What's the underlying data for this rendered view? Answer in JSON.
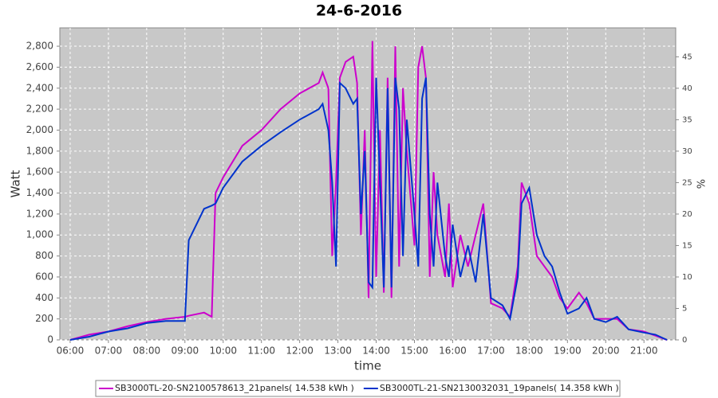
{
  "chart_data": {
    "type": "line",
    "title": "24-6-2016",
    "x_label": "time",
    "y_label": "Watt",
    "y2_label": "%",
    "x": [
      6.0,
      6.5,
      7.0,
      7.5,
      8.0,
      8.5,
      9.0,
      9.1,
      9.5,
      9.7,
      9.8,
      10.0,
      10.5,
      11.0,
      11.5,
      12.0,
      12.5,
      12.6,
      12.75,
      12.85,
      12.95,
      13.05,
      13.2,
      13.4,
      13.5,
      13.6,
      13.7,
      13.8,
      13.9,
      14.0,
      14.1,
      14.2,
      14.3,
      14.4,
      14.5,
      14.6,
      14.7,
      14.8,
      15.0,
      15.1,
      15.2,
      15.3,
      15.4,
      15.5,
      15.6,
      15.8,
      15.9,
      16.0,
      16.2,
      16.4,
      16.6,
      16.8,
      17.0,
      17.3,
      17.5,
      17.7,
      17.8,
      18.0,
      18.2,
      18.4,
      18.6,
      18.8,
      19.0,
      19.3,
      19.5,
      19.7,
      20.0,
      20.3,
      20.6,
      21.0,
      21.3,
      21.6
    ],
    "series": [
      {
        "name": "SB3000TL-20-SN2100578613_21panels( 14.538 kWh )",
        "color": "#cc00cc",
        "values": [
          0,
          50,
          80,
          130,
          170,
          200,
          220,
          230,
          260,
          220,
          1400,
          1550,
          1850,
          2000,
          2200,
          2350,
          2450,
          2550,
          2400,
          800,
          1500,
          2500,
          2650,
          2700,
          2450,
          1000,
          2000,
          400,
          2850,
          600,
          2000,
          450,
          2500,
          400,
          2800,
          700,
          2400,
          1800,
          900,
          2600,
          2800,
          2500,
          600,
          1600,
          1000,
          600,
          1300,
          500,
          1000,
          700,
          1000,
          1300,
          350,
          300,
          220,
          700,
          1500,
          1300,
          800,
          700,
          600,
          400,
          300,
          450,
          350,
          200,
          200,
          200,
          100,
          80,
          40,
          0
        ]
      },
      {
        "name": "SB3000TL-21-SN2130032031_19panels( 14.358 kWh )",
        "color": "#0033cc",
        "values": [
          0,
          30,
          80,
          110,
          160,
          180,
          180,
          950,
          1250,
          1280,
          1300,
          1450,
          1700,
          1850,
          1980,
          2100,
          2200,
          2250,
          2000,
          1500,
          700,
          2450,
          2400,
          2250,
          2300,
          1200,
          1800,
          550,
          500,
          2500,
          1500,
          500,
          2400,
          500,
          2500,
          2200,
          800,
          2100,
          1200,
          700,
          2300,
          2500,
          1200,
          700,
          1500,
          800,
          600,
          1100,
          600,
          900,
          550,
          1200,
          400,
          330,
          200,
          600,
          1300,
          1450,
          1000,
          800,
          700,
          450,
          250,
          300,
          400,
          200,
          170,
          220,
          100,
          70,
          50,
          0
        ]
      }
    ],
    "xlim": [
      5.73,
      21.83
    ],
    "ylim": [
      0,
      2975
    ],
    "y2lim": [
      0,
      49.6
    ],
    "xticks": [
      {
        "value": 6,
        "label": "06:00"
      },
      {
        "value": 7,
        "label": "07:00"
      },
      {
        "value": 8,
        "label": "08:00"
      },
      {
        "value": 9,
        "label": "09:00"
      },
      {
        "value": 10,
        "label": "10:00"
      },
      {
        "value": 11,
        "label": "11:00"
      },
      {
        "value": 12,
        "label": "12:00"
      },
      {
        "value": 13,
        "label": "13:00"
      },
      {
        "value": 14,
        "label": "14:00"
      },
      {
        "value": 15,
        "label": "15:00"
      },
      {
        "value": 16,
        "label": "16:00"
      },
      {
        "value": 17,
        "label": "17:00"
      },
      {
        "value": 18,
        "label": "18:00"
      },
      {
        "value": 19,
        "label": "19:00"
      },
      {
        "value": 20,
        "label": "20:00"
      },
      {
        "value": 21,
        "label": "21:00"
      }
    ],
    "yticks": [
      0,
      {
        "value": 200,
        "label": "200"
      },
      {
        "value": 400,
        "label": "400"
      },
      {
        "value": 600,
        "label": "600"
      },
      {
        "value": 800,
        "label": "800"
      },
      {
        "value": 1000,
        "label": "1,000"
      },
      {
        "value": 1200,
        "label": "1,200"
      },
      {
        "value": 1400,
        "label": "1,400"
      },
      {
        "value": 1600,
        "label": "1,600"
      },
      {
        "value": 1800,
        "label": "1,800"
      },
      {
        "value": 2000,
        "label": "2,000"
      },
      {
        "value": 2200,
        "label": "2,200"
      },
      {
        "value": 2400,
        "label": "2,400"
      },
      {
        "value": 2600,
        "label": "2,600"
      },
      {
        "value": 2800,
        "label": "2,800"
      }
    ],
    "y2ticks": [
      0,
      5,
      10,
      15,
      20,
      25,
      30,
      35,
      40,
      45
    ],
    "grid": true,
    "legend": "bottom"
  }
}
